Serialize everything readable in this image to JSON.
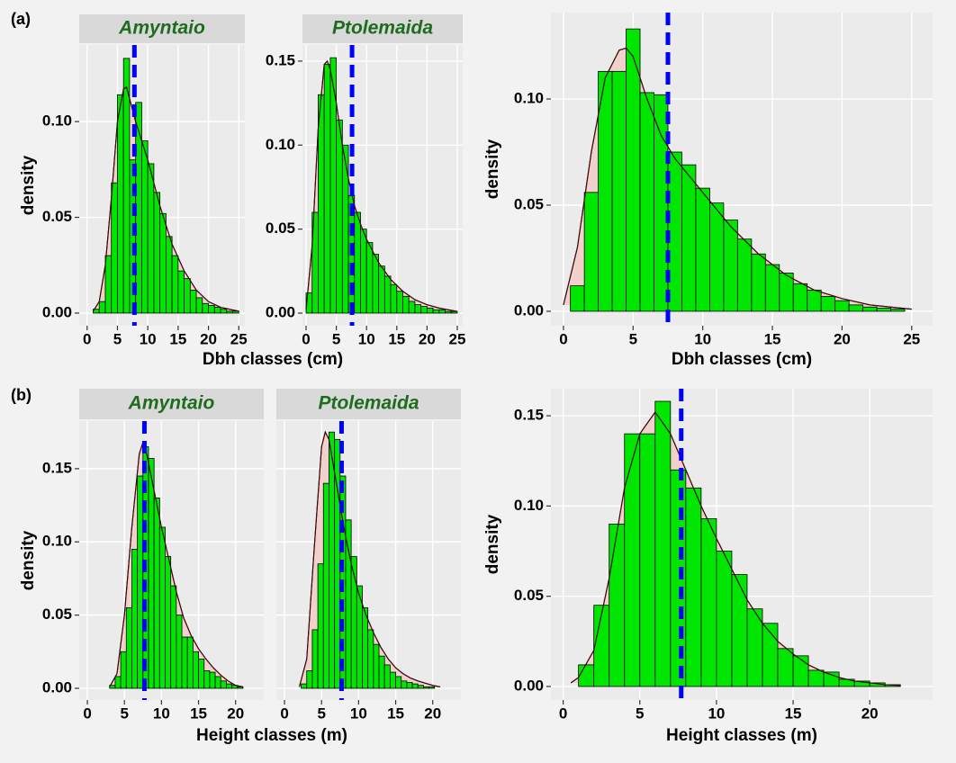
{
  "chart_data": [
    {
      "type": "histogram",
      "panel_label": "(a)",
      "strip": "Amyntaio",
      "ylabel": "density",
      "xlabel": "Dbh classes (cm)",
      "bins": [
        1,
        2,
        3,
        4,
        5,
        6,
        7,
        8,
        9,
        10,
        11,
        12,
        13,
        14,
        15,
        16,
        17,
        18,
        19,
        20,
        21,
        22,
        23,
        24,
        25
      ],
      "values": [
        0.002,
        0.006,
        0.03,
        0.068,
        0.114,
        0.133,
        0.08,
        0.11,
        0.09,
        0.078,
        0.063,
        0.052,
        0.04,
        0.03,
        0.022,
        0.018,
        0.012,
        0.008,
        0.005,
        0.004,
        0.003,
        0.002,
        0.001,
        0.001
      ],
      "density_curve": {
        "x": [
          1,
          2,
          3,
          4,
          5,
          6,
          6.5,
          7,
          8,
          9,
          10,
          11,
          12,
          14,
          16,
          18,
          20,
          22,
          25
        ],
        "y": [
          0.001,
          0.006,
          0.025,
          0.06,
          0.1,
          0.117,
          0.118,
          0.112,
          0.1,
          0.09,
          0.08,
          0.068,
          0.056,
          0.036,
          0.022,
          0.012,
          0.006,
          0.003,
          0.001
        ]
      },
      "mean_line": 7.8,
      "xlim": [
        -1.3,
        26.0
      ],
      "ylim": [
        -0.0066,
        0.14
      ],
      "xticks": [
        0,
        5,
        10,
        15,
        20,
        25
      ],
      "yticks": [
        {
          "value": 0,
          "label": "0.00"
        },
        {
          "value": 0.05,
          "label": "0.05"
        },
        {
          "value": 0.1,
          "label": "0.10"
        }
      ],
      "bar_color": "#00e600",
      "curve_fill": "#f2d0cc",
      "mean_color": "#0000ff",
      "grid": true
    },
    {
      "type": "histogram",
      "strip": "Ptolemaida",
      "bins": [
        0,
        1,
        2,
        3,
        4,
        5,
        6,
        7,
        8,
        9,
        10,
        11,
        12,
        13,
        14,
        15,
        16,
        17,
        18,
        19,
        20,
        21,
        22,
        23,
        24,
        25
      ],
      "values": [
        0.012,
        0.06,
        0.13,
        0.148,
        0.152,
        0.115,
        0.1,
        0.07,
        0.06,
        0.05,
        0.042,
        0.035,
        0.028,
        0.022,
        0.017,
        0.013,
        0.01,
        0.007,
        0.005,
        0.004,
        0.003,
        0.002,
        0.002,
        0.001,
        0.001
      ],
      "density_curve": {
        "x": [
          0,
          1,
          2,
          3,
          3.5,
          4,
          5,
          6,
          7,
          8,
          9,
          10,
          12,
          14,
          16,
          18,
          20,
          22,
          25
        ],
        "y": [
          0.002,
          0.04,
          0.11,
          0.148,
          0.15,
          0.145,
          0.125,
          0.1,
          0.08,
          0.064,
          0.053,
          0.044,
          0.03,
          0.02,
          0.013,
          0.008,
          0.005,
          0.003,
          0.001
        ]
      },
      "mean_line": 7.6,
      "xlim": [
        -0.6,
        25.9
      ],
      "ylim": [
        -0.0075,
        0.1596
      ],
      "xticks": [
        0,
        5,
        10,
        15,
        20,
        25
      ],
      "yticks": [
        {
          "value": 0,
          "label": "0.00"
        },
        {
          "value": 0.05,
          "label": "0.05"
        },
        {
          "value": 0.1,
          "label": "0.10"
        },
        {
          "value": 0.15,
          "label": "0.15"
        }
      ],
      "bar_color": "#00e600",
      "curve_fill": "#f2d0cc",
      "mean_color": "#0000ff",
      "grid": true
    },
    {
      "type": "histogram",
      "ylabel": "density",
      "xlabel": "Dbh classes (cm)",
      "bins": [
        0.5,
        1.5,
        2.5,
        3.5,
        4.5,
        5.5,
        6.5,
        7.5,
        8.5,
        9.5,
        10.5,
        11.5,
        12.5,
        13.5,
        14.5,
        15.5,
        16.5,
        17.5,
        18.5,
        19.5,
        20.5,
        21.5,
        22.5,
        23.5,
        24.5
      ],
      "values": [
        0.012,
        0.056,
        0.113,
        0.113,
        0.133,
        0.103,
        0.102,
        0.075,
        0.069,
        0.058,
        0.051,
        0.043,
        0.034,
        0.027,
        0.022,
        0.018,
        0.013,
        0.01,
        0.007,
        0.005,
        0.003,
        0.002,
        0.0015,
        0.001
      ],
      "density_curve": {
        "x": [
          0,
          1,
          2,
          3,
          4,
          4.5,
          5,
          6,
          7,
          8,
          9,
          10,
          12,
          14,
          16,
          18,
          20,
          22,
          25
        ],
        "y": [
          0.003,
          0.03,
          0.075,
          0.11,
          0.123,
          0.124,
          0.12,
          0.1,
          0.083,
          0.072,
          0.064,
          0.056,
          0.04,
          0.027,
          0.017,
          0.01,
          0.006,
          0.003,
          0.001
        ]
      },
      "mean_line": 7.5,
      "xlim": [
        -0.9,
        26.5
      ],
      "ylim": [
        -0.0068,
        0.1407
      ],
      "xticks": [
        0,
        5,
        10,
        15,
        20,
        25
      ],
      "yticks": [
        {
          "value": 0,
          "label": "0.00"
        },
        {
          "value": 0.05,
          "label": "0.05"
        },
        {
          "value": 0.1,
          "label": "0.10"
        }
      ],
      "bar_color": "#00e600",
      "curve_fill": "#f2d0cc",
      "mean_color": "#0000ff",
      "grid": true
    },
    {
      "type": "histogram",
      "panel_label": "(b)",
      "strip": "Amyntaio",
      "ylabel": "density",
      "xlabel": "Height classes (m)",
      "bins": [
        3,
        3.75,
        4.5,
        5.25,
        6,
        6.75,
        7.5,
        8.25,
        9,
        9.75,
        10.5,
        11.25,
        12,
        12.75,
        13.5,
        14.25,
        15,
        15.75,
        16.5,
        17.25,
        18,
        18.75,
        19.5,
        20.25,
        21
      ],
      "values": [
        0.002,
        0.008,
        0.025,
        0.055,
        0.095,
        0.145,
        0.165,
        0.157,
        0.13,
        0.11,
        0.09,
        0.07,
        0.05,
        0.035,
        0.035,
        0.025,
        0.02,
        0.012,
        0.011,
        0.008,
        0.005,
        0.003,
        0.002,
        0.001
      ],
      "density_curve": {
        "x": [
          3,
          4,
          5,
          6,
          7,
          7.5,
          8,
          9,
          10,
          11,
          12,
          13,
          14,
          15,
          16,
          17,
          18,
          19,
          20,
          21
        ],
        "y": [
          0.001,
          0.01,
          0.05,
          0.11,
          0.16,
          0.168,
          0.16,
          0.135,
          0.11,
          0.088,
          0.066,
          0.048,
          0.036,
          0.027,
          0.02,
          0.014,
          0.009,
          0.005,
          0.002,
          0.001
        ]
      },
      "mean_line": 7.7,
      "xlim": [
        -1.1,
        23.8
      ],
      "ylim": [
        -0.008,
        0.1825
      ],
      "xticks": [
        0,
        5,
        10,
        15,
        20
      ],
      "yticks": [
        {
          "value": 0,
          "label": "0.00"
        },
        {
          "value": 0.05,
          "label": "0.05"
        },
        {
          "value": 0.1,
          "label": "0.10"
        },
        {
          "value": 0.15,
          "label": "0.15"
        }
      ],
      "bar_color": "#00e600",
      "curve_fill": "#f2d0cc",
      "mean_color": "#0000ff",
      "grid": true
    },
    {
      "type": "histogram",
      "strip": "Ptolemaida",
      "show_y_tick_labels": false,
      "bins": [
        2.25,
        3,
        3.75,
        4.5,
        5.25,
        6,
        6.75,
        7.5,
        8.25,
        9,
        9.75,
        10.5,
        11.25,
        12,
        12.75,
        13.5,
        14.25,
        15,
        15.75,
        16.5,
        17.25,
        18,
        18.75,
        19.5,
        20.25
      ],
      "values": [
        0.003,
        0.012,
        0.04,
        0.085,
        0.14,
        0.175,
        0.17,
        0.145,
        0.115,
        0.09,
        0.07,
        0.055,
        0.04,
        0.03,
        0.022,
        0.016,
        0.011,
        0.008,
        0.005,
        0.004,
        0.003,
        0.002,
        0.001,
        0.001
      ],
      "density_curve": {
        "x": [
          2,
          3,
          4,
          5,
          5.5,
          6,
          7,
          8,
          9,
          10,
          11,
          12,
          13,
          14,
          15,
          16,
          17,
          18,
          20,
          21
        ],
        "y": [
          0.001,
          0.02,
          0.095,
          0.165,
          0.175,
          0.17,
          0.14,
          0.11,
          0.085,
          0.065,
          0.05,
          0.038,
          0.028,
          0.02,
          0.014,
          0.01,
          0.007,
          0.005,
          0.002,
          0.001
        ]
      },
      "mean_line": 7.7,
      "xlim": [
        -1.1,
        23.8
      ],
      "ylim": [
        -0.008,
        0.1825
      ],
      "xticks": [
        0,
        5,
        10,
        15,
        20
      ],
      "yticks": [
        {
          "value": 0,
          "label": "0.00"
        },
        {
          "value": 0.05,
          "label": "0.05"
        },
        {
          "value": 0.1,
          "label": "0.10"
        },
        {
          "value": 0.15,
          "label": "0.15"
        }
      ],
      "bar_color": "#00e600",
      "curve_fill": "#f2d0cc",
      "mean_color": "#0000ff",
      "grid": true
    },
    {
      "type": "histogram",
      "ylabel": "density",
      "xlabel": "Height classes (m)",
      "bins": [
        1,
        2,
        3,
        4,
        5,
        6,
        7,
        8,
        9,
        10,
        11,
        12,
        13,
        14,
        15,
        16,
        17,
        18,
        19,
        20,
        21,
        22
      ],
      "values": [
        0.012,
        0.045,
        0.09,
        0.14,
        0.14,
        0.158,
        0.12,
        0.11,
        0.093,
        0.075,
        0.062,
        0.043,
        0.035,
        0.021,
        0.017,
        0.009,
        0.008,
        0.004,
        0.003,
        0.002,
        0.001
      ],
      "density_curve": {
        "x": [
          0.5,
          1,
          2,
          3,
          4,
          5,
          6,
          7,
          8,
          9,
          10,
          11,
          12,
          13,
          14,
          15,
          16,
          17,
          18,
          19,
          20,
          21,
          22
        ],
        "y": [
          0.002,
          0.005,
          0.02,
          0.06,
          0.11,
          0.14,
          0.152,
          0.14,
          0.12,
          0.1,
          0.082,
          0.065,
          0.048,
          0.035,
          0.025,
          0.018,
          0.012,
          0.008,
          0.005,
          0.003,
          0.002,
          0.001,
          0.0005
        ]
      },
      "mean_line": 7.7,
      "xlim": [
        -0.8,
        24.1
      ],
      "ylim": [
        -0.0075,
        0.165
      ],
      "xticks": [
        0,
        5,
        10,
        15,
        20
      ],
      "yticks": [
        {
          "value": 0,
          "label": "0.00"
        },
        {
          "value": 0.05,
          "label": "0.05"
        },
        {
          "value": 0.1,
          "label": "0.10"
        },
        {
          "value": 0.15,
          "label": "0.15"
        }
      ],
      "bar_color": "#00e600",
      "curve_fill": "#f2d0cc",
      "mean_color": "#0000ff",
      "grid": true
    }
  ]
}
